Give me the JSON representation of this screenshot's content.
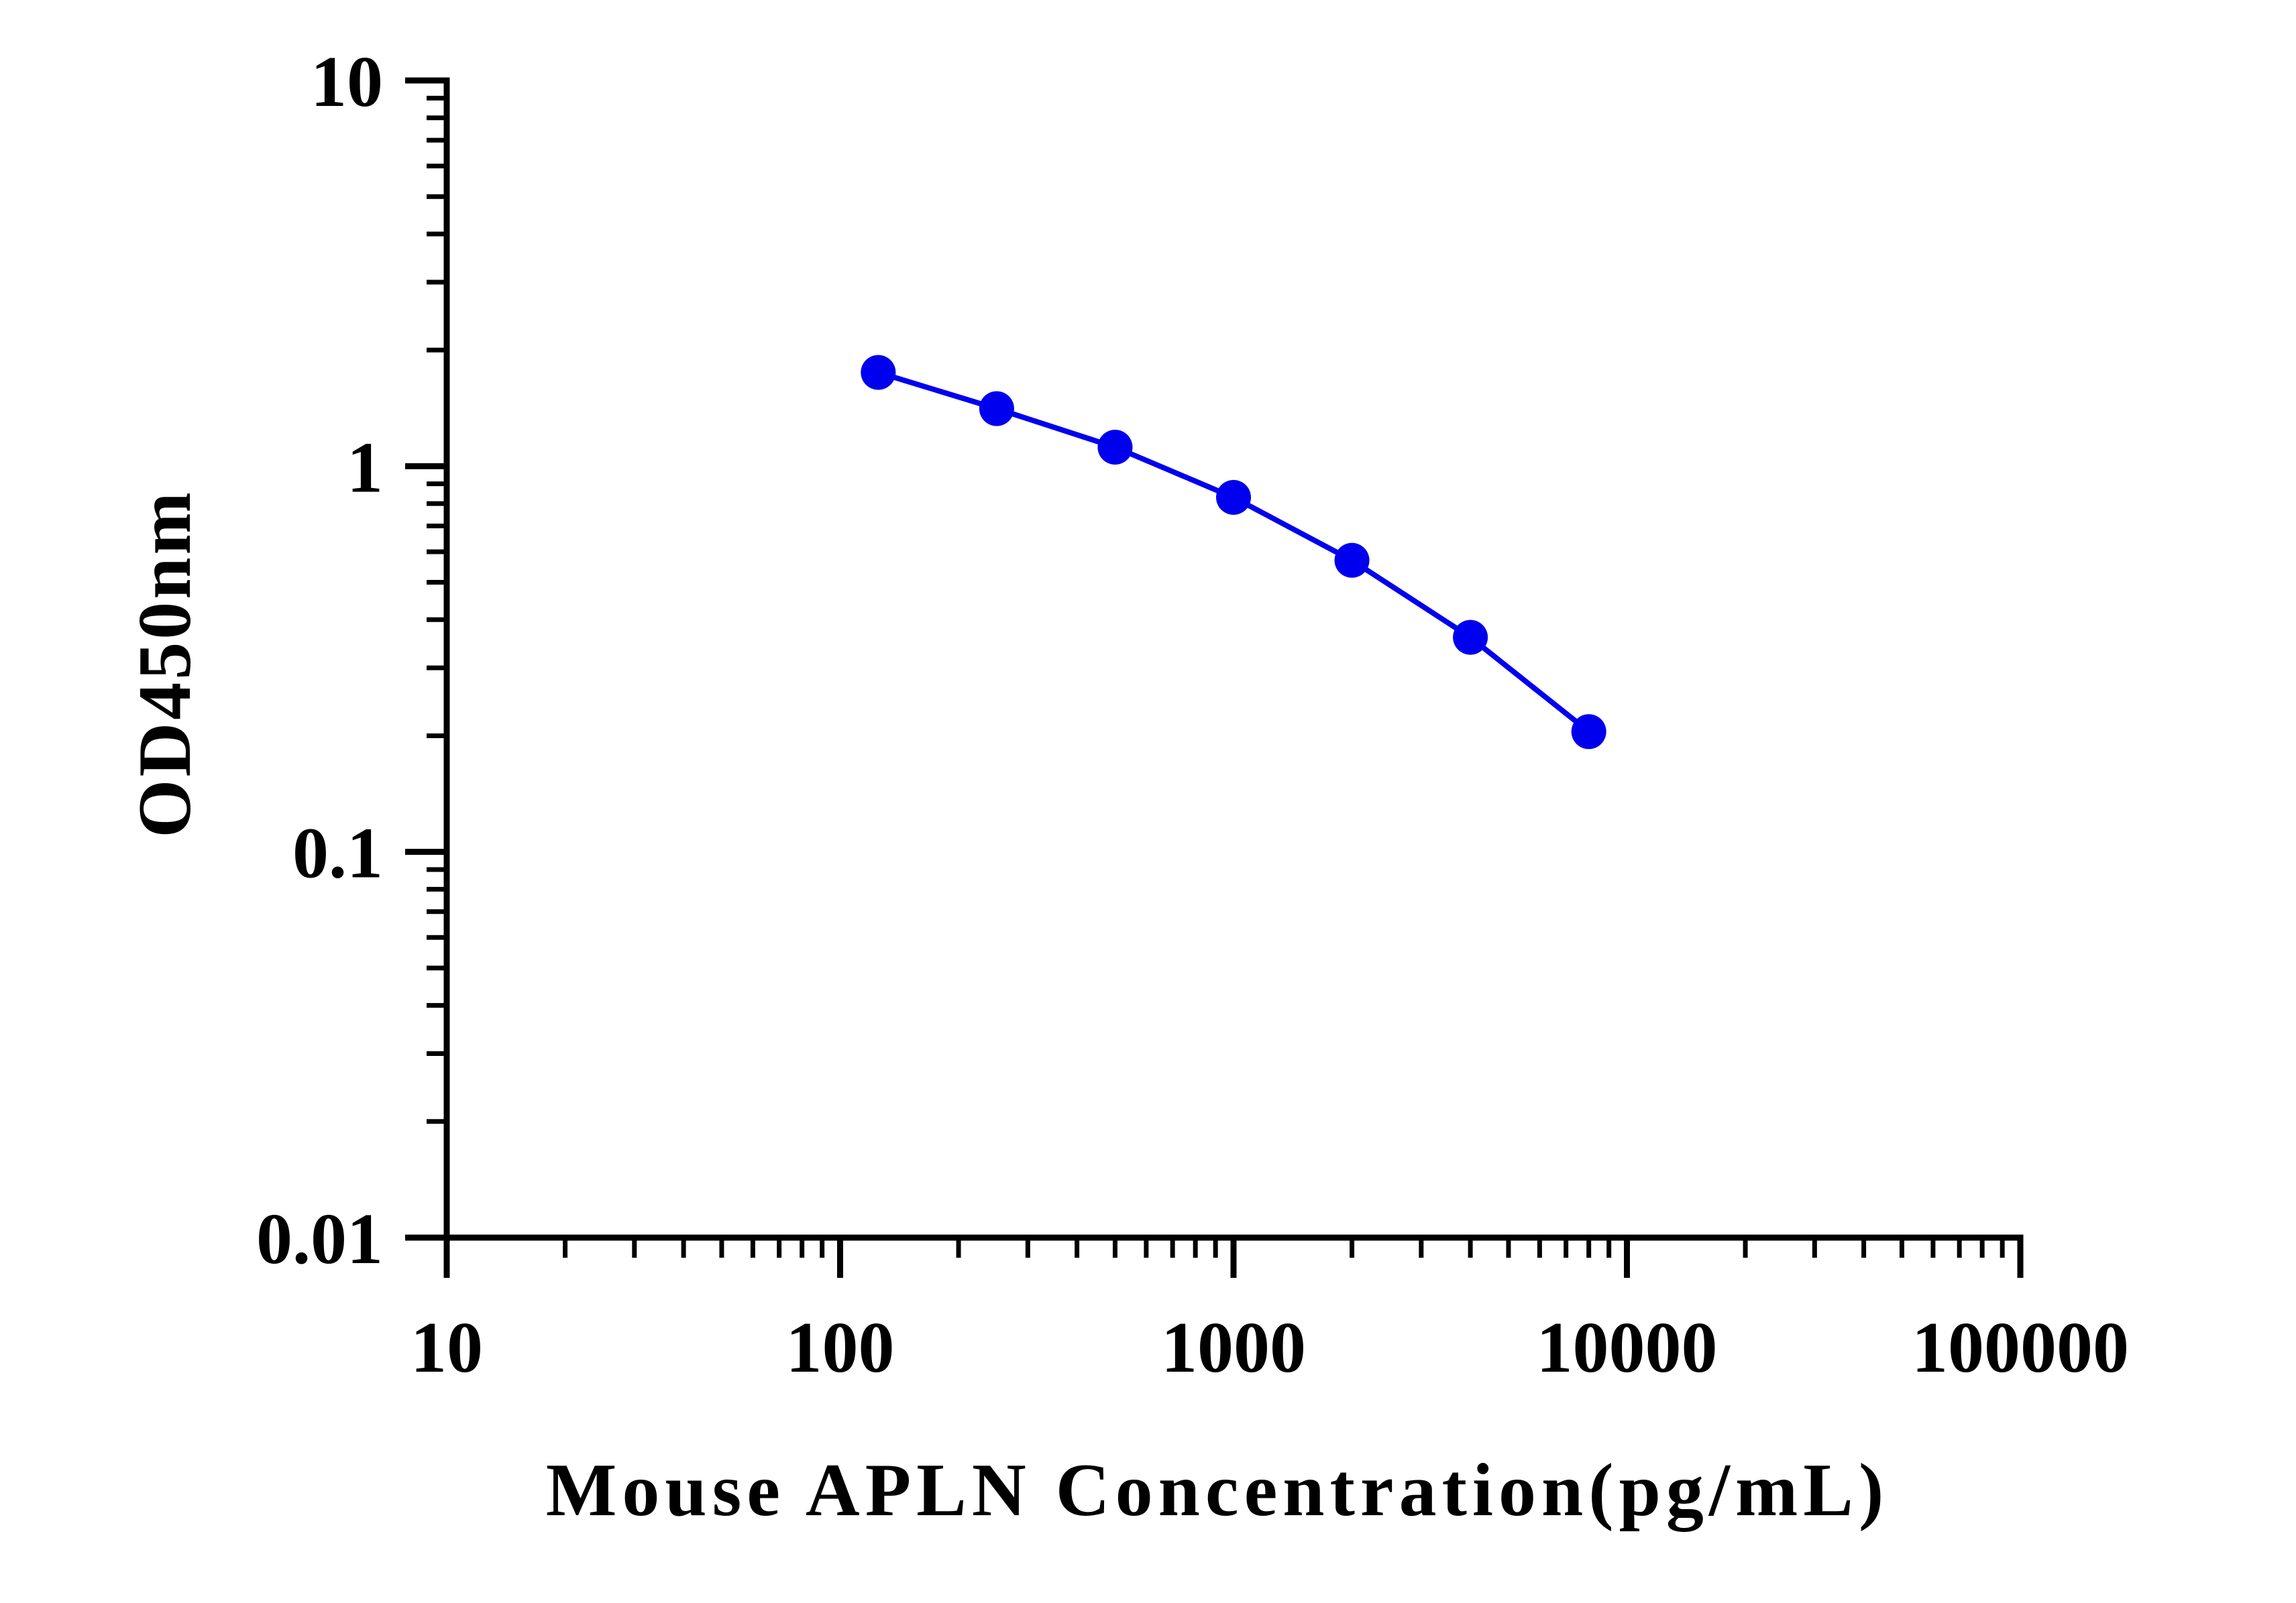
{
  "chart_data": {
    "type": "line",
    "title": "",
    "xlabel": "Mouse APLN Concentration(pg/mL)",
    "ylabel": "OD450nm",
    "x_scale": "log",
    "y_scale": "log",
    "xlim": [
      10,
      100000
    ],
    "ylim": [
      0.01,
      10
    ],
    "x_ticks": [
      10,
      100,
      1000,
      10000,
      100000
    ],
    "x_tick_labels": [
      "10",
      "100",
      "1000",
      "10000",
      "100000"
    ],
    "y_ticks": [
      0.01,
      0.1,
      1,
      10
    ],
    "y_tick_labels": [
      "0.01",
      "0.1",
      "1",
      "10"
    ],
    "grid": false,
    "legend": "none",
    "series": [
      {
        "color": "#0000ee",
        "x": [
          125,
          250,
          500,
          1000,
          2000,
          4000,
          8000
        ],
        "y": [
          1.75,
          1.41,
          1.12,
          0.83,
          0.57,
          0.36,
          0.205
        ]
      }
    ]
  }
}
